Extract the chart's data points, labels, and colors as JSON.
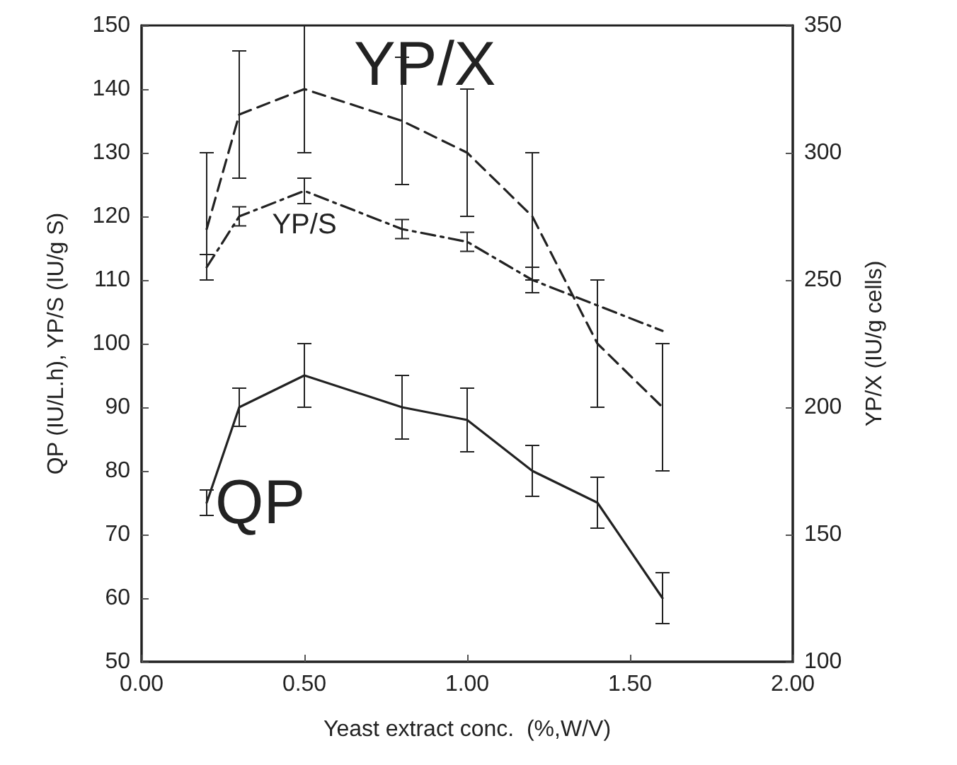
{
  "chart_data": {
    "type": "line",
    "xlabel": "Yeast extract conc.  (%,W/V)",
    "ylabel": "QP (IU/L.h), YP/S (IU/g S)",
    "y2label": "YP/X (IU/g cells)",
    "x": [
      0.2,
      0.3,
      0.5,
      0.8,
      1.0,
      1.2,
      1.4,
      1.6
    ],
    "series": [
      {
        "name": "QP",
        "color": "#222222",
        "line_style": "solid",
        "values": [
          75,
          90,
          95,
          90,
          88,
          80,
          75,
          60
        ],
        "errors": [
          2,
          3,
          5,
          5,
          5,
          4,
          4,
          4
        ]
      },
      {
        "name": "YP/S",
        "color": "#222222",
        "line_style": "dotted",
        "values": [
          112,
          120,
          124,
          118,
          116,
          110,
          106,
          102
        ],
        "errors": [
          2,
          1.5,
          2,
          1.5,
          1.5,
          2,
          null,
          null
        ]
      },
      {
        "name": "YP/X",
        "color": "#222222",
        "line_style": "dashed",
        "axis": "y2",
        "values": [
          270,
          315,
          325,
          312.5,
          300,
          275,
          225,
          200
        ],
        "errors": [
          [
            250,
            300
          ],
          25,
          25,
          25,
          25,
          25,
          25,
          25
        ]
      }
    ],
    "marker": "none",
    "grid": false,
    "legend": false,
    "xlim": [
      0,
      2
    ],
    "xticks": [
      {
        "value": 0,
        "label": "0.00"
      },
      {
        "value": 0.5,
        "label": "0.50"
      },
      {
        "value": 1,
        "label": "1.00"
      },
      {
        "value": 1.5,
        "label": "1.50"
      },
      {
        "value": 2,
        "label": "2.00"
      }
    ],
    "ylim": [
      50,
      150
    ],
    "yticks": [
      50,
      60,
      70,
      80,
      90,
      100,
      110,
      120,
      130,
      140,
      150
    ],
    "y2lim": [
      100,
      350
    ],
    "y2ticks": [
      100,
      150,
      200,
      250,
      300,
      350
    ]
  }
}
